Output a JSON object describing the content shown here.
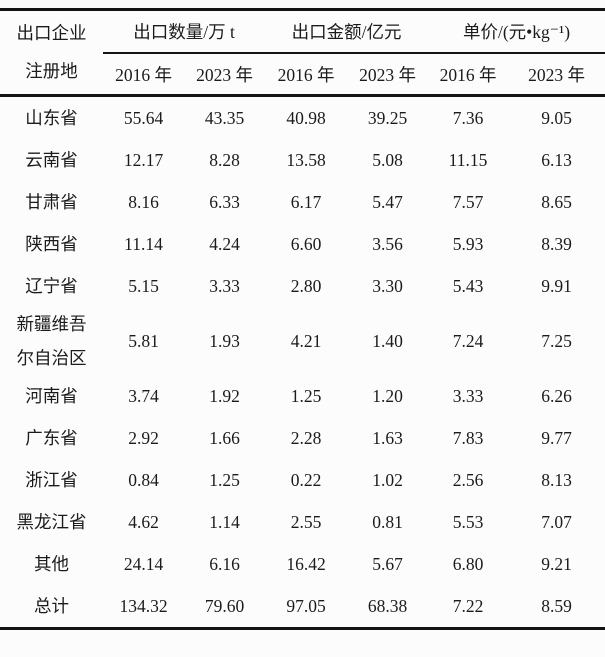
{
  "chart_data": {
    "type": "table",
    "header": {
      "stub_line1": "出口企业",
      "stub_line2": "注册地",
      "groups": [
        "出口数量/万 t",
        "出口金额/亿元",
        "单价/(元•kg⁻¹)"
      ],
      "years": [
        "2016 年",
        "2023 年",
        "2016 年",
        "2023 年",
        "2016 年",
        "2023 年"
      ]
    },
    "rows": [
      {
        "label": "山东省",
        "values": [
          "55.64",
          "43.35",
          "40.98",
          "39.25",
          "7.36",
          "9.05"
        ]
      },
      {
        "label": "云南省",
        "values": [
          "12.17",
          "8.28",
          "13.58",
          "5.08",
          "11.15",
          "6.13"
        ]
      },
      {
        "label": "甘肃省",
        "values": [
          "8.16",
          "6.33",
          "6.17",
          "5.47",
          "7.57",
          "8.65"
        ]
      },
      {
        "label": "陕西省",
        "values": [
          "11.14",
          "4.24",
          "6.60",
          "3.56",
          "5.93",
          "8.39"
        ]
      },
      {
        "label": "辽宁省",
        "values": [
          "5.15",
          "3.33",
          "2.80",
          "3.30",
          "5.43",
          "9.91"
        ]
      },
      {
        "label": "新疆维吾尔自治区",
        "values": [
          "5.81",
          "1.93",
          "4.21",
          "1.40",
          "7.24",
          "7.25"
        ]
      },
      {
        "label": "河南省",
        "values": [
          "3.74",
          "1.92",
          "1.25",
          "1.20",
          "3.33",
          "6.26"
        ]
      },
      {
        "label": "广东省",
        "values": [
          "2.92",
          "1.66",
          "2.28",
          "1.63",
          "7.83",
          "9.77"
        ]
      },
      {
        "label": "浙江省",
        "values": [
          "0.84",
          "1.25",
          "0.22",
          "1.02",
          "2.56",
          "8.13"
        ]
      },
      {
        "label": "黑龙江省",
        "values": [
          "4.62",
          "1.14",
          "2.55",
          "0.81",
          "5.53",
          "7.07"
        ]
      },
      {
        "label": "其他",
        "values": [
          "24.14",
          "6.16",
          "16.42",
          "5.67",
          "6.80",
          "9.21"
        ]
      },
      {
        "label": "总计",
        "values": [
          "134.32",
          "79.60",
          "97.05",
          "68.38",
          "7.22",
          "8.59"
        ]
      }
    ]
  },
  "colors": {
    "text": "#1b1b1b",
    "rule": "#141414",
    "background": "#fcfcfc"
  }
}
